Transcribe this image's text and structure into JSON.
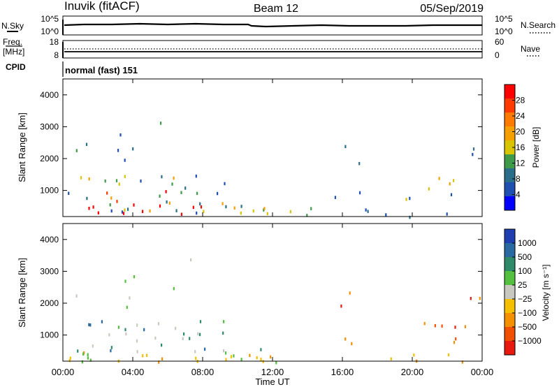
{
  "header": {
    "station": "Inuvik (fitACF)",
    "beam": "Beam 12",
    "date": "05/Sep/2019"
  },
  "top_panels": {
    "nsky_label": "N.Sky",
    "nsearch_label": "N.Search",
    "nsky_ticks": [
      "10^5",
      "10^0"
    ],
    "nsearch_ticks": [
      "10^5",
      "10^0"
    ],
    "freq_label_1": "Freq.",
    "freq_label_2": "[MHz]",
    "freq_ticks": [
      "18",
      "8"
    ],
    "nave_label": "Nave",
    "nave_ticks": [
      "60",
      "0"
    ],
    "cpid_label": "CPID",
    "cpid_value": "normal (fast) 151"
  },
  "chart_data": [
    {
      "type": "heatmap",
      "name": "power",
      "ylabel": "Slant Range [km]",
      "ylim": [
        180,
        4500
      ],
      "yticks": [
        1000,
        2000,
        3000,
        4000
      ],
      "xlim": [
        0,
        24
      ],
      "xticks": [
        "00:00",
        "04:00",
        "08:00",
        "12:00",
        "16:00",
        "20:00",
        "00:00"
      ],
      "colorbar_label": "Power [dB]",
      "colorbar_ticks": [
        "28",
        "24",
        "20",
        "16",
        "12",
        "8",
        "4"
      ],
      "colorbar_colors": [
        "#ff0000",
        "#ff3a00",
        "#ff7a00",
        "#f5a000",
        "#d8c400",
        "#3f9a4a",
        "#2a6e8a",
        "#1f4fb0",
        "#0000ff"
      ]
    },
    {
      "type": "heatmap",
      "name": "velocity",
      "ylabel": "Slant Range [km]",
      "ylim": [
        180,
        4500
      ],
      "yticks": [
        1000,
        2000,
        3000,
        4000
      ],
      "xlim": [
        0,
        24
      ],
      "xticks": [
        "00:00",
        "04:00",
        "08:00",
        "12:00",
        "16:00",
        "20:00",
        "00:00"
      ],
      "xlabel": "Time UT",
      "colorbar_label": "Velocity [m s⁻¹]",
      "colorbar_ticks": [
        "1000",
        "500",
        "100",
        "25",
        "−25",
        "−100",
        "−500",
        "−1000"
      ],
      "colorbar_colors": [
        "#1f3fb0",
        "#2a6aa0",
        "#2f8a6a",
        "#55c040",
        "#c8c8c0",
        "#f5c000",
        "#f59000",
        "#f05000",
        "#e81a10"
      ]
    }
  ]
}
